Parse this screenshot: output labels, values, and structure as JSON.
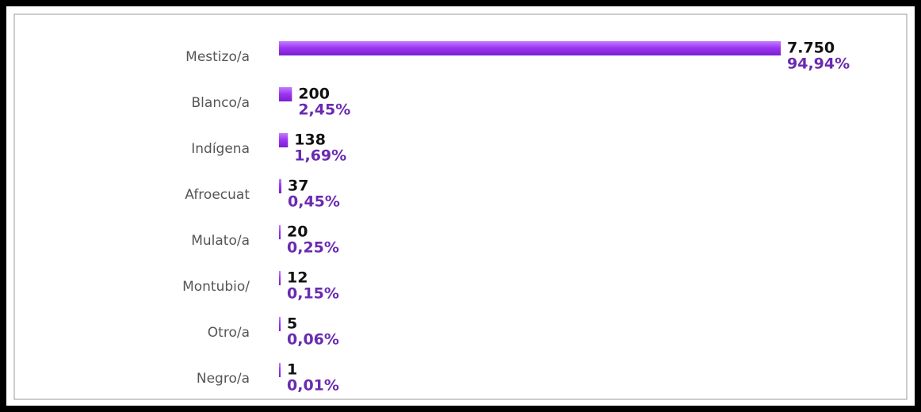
{
  "chart_data": {
    "type": "bar",
    "orientation": "horizontal",
    "categories": [
      "Mestizo/a",
      "Blanco/a",
      "Indígena",
      "Afroecuat",
      "Mulato/a",
      "Montubio/",
      "Otro/a",
      "Negro/a"
    ],
    "values": [
      7750,
      200,
      138,
      37,
      20,
      12,
      5,
      1
    ],
    "value_labels": [
      "7.750",
      "200",
      "138",
      "37",
      "20",
      "12",
      "5",
      "1"
    ],
    "shares": [
      94.94,
      2.45,
      1.69,
      0.45,
      0.25,
      0.15,
      0.06,
      0.01
    ],
    "share_labels": [
      "94,94%",
      "2,45%",
      "1,69%",
      "0,45%",
      "0,25%",
      "0,15%",
      "0,06%",
      "0,01%"
    ],
    "color": "#9a33f0"
  }
}
